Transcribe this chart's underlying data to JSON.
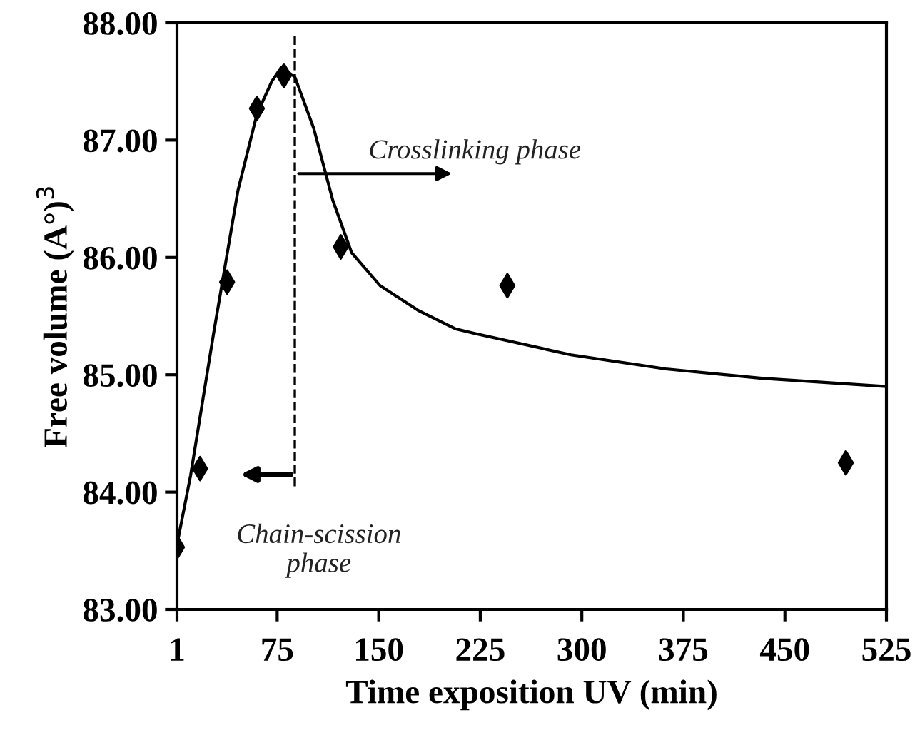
{
  "chart_data": {
    "type": "scatter",
    "xlabel": "Time exposition UV (min)",
    "ylabel": "Free volume (A°)$^{3}$",
    "xlim": [
      1,
      525
    ],
    "xticks": [
      1,
      75,
      150,
      225,
      300,
      375,
      450,
      525
    ],
    "ylim": [
      83,
      88
    ],
    "yticks": [
      {
        "value": 83,
        "label": "83.00"
      },
      {
        "value": 84,
        "label": "84.00"
      },
      {
        "value": 85,
        "label": "85.00"
      },
      {
        "value": 86,
        "label": "86.00"
      },
      {
        "value": 87,
        "label": "87.00"
      },
      {
        "value": 88,
        "label": "88.00"
      }
    ],
    "grid": false,
    "series": [
      {
        "color": "#000000",
        "marker": "diamond",
        "x": [
          1,
          18,
          38,
          60,
          80,
          122,
          245,
          495
        ],
        "values": [
          83.53,
          84.2,
          85.79,
          87.27,
          87.55,
          86.09,
          85.76,
          84.25
        ]
      },
      {
        "type": "line",
        "color": "#000000",
        "marker": "none",
        "line_style": "solid",
        "x": [
          1,
          11,
          28,
          46,
          60,
          71,
          78,
          88,
          102,
          116,
          130,
          151,
          179,
          207,
          222,
          292,
          362,
          433,
          525
        ],
        "values": [
          83.55,
          84.14,
          85.35,
          86.57,
          87.22,
          87.5,
          87.62,
          87.54,
          87.1,
          86.49,
          86.04,
          85.76,
          85.55,
          85.39,
          85.35,
          85.17,
          85.05,
          84.97,
          84.9
        ]
      }
    ],
    "ref_lines": [
      {
        "axis": "x",
        "value": 88,
        "line_style": "dashed",
        "color": "#000000"
      }
    ],
    "annotations": [
      "Crosslinking phase",
      "Chain-scission\nphase"
    ]
  }
}
